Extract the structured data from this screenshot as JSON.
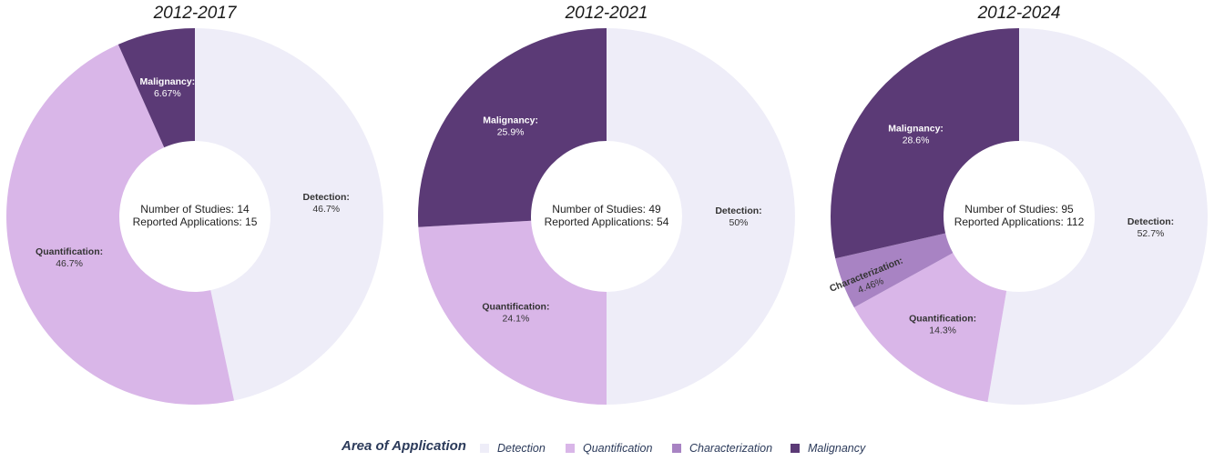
{
  "colors": {
    "Detection": "#eeedf8",
    "Quantification": "#d9b6e8",
    "Characterization": "#a883c3",
    "Malignancy": "#5b3a76"
  },
  "legend": {
    "title": "Area of Application",
    "items": [
      "Detection",
      "Quantification",
      "Characterization",
      "Malignancy"
    ]
  },
  "chart_data": [
    {
      "type": "pie",
      "title": "2012-2017",
      "center_lines": [
        "Number of Studies: 14",
        "Reported Applications: 15"
      ],
      "slices": [
        {
          "name": "Detection",
          "value": 46.7,
          "label": "46.7%"
        },
        {
          "name": "Quantification",
          "value": 46.7,
          "label": "46.7%"
        },
        {
          "name": "Malignancy",
          "value": 6.67,
          "label": "6.67%"
        }
      ]
    },
    {
      "type": "pie",
      "title": "2012-2021",
      "center_lines": [
        "Number of Studies: 49",
        "Reported Applications: 54"
      ],
      "slices": [
        {
          "name": "Detection",
          "value": 50,
          "label": "50%"
        },
        {
          "name": "Quantification",
          "value": 24.1,
          "label": "24.1%"
        },
        {
          "name": "Malignancy",
          "value": 25.9,
          "label": "25.9%"
        }
      ]
    },
    {
      "type": "pie",
      "title": "2012-2024",
      "center_lines": [
        "Number of Studies: 95",
        "Reported Applications: 112"
      ],
      "slices": [
        {
          "name": "Detection",
          "value": 52.7,
          "label": "52.7%"
        },
        {
          "name": "Quantification",
          "value": 14.3,
          "label": "14.3%"
        },
        {
          "name": "Characterization",
          "value": 4.46,
          "label": "4.46%"
        },
        {
          "name": "Malignancy",
          "value": 28.6,
          "label": "28.6%"
        }
      ]
    }
  ]
}
